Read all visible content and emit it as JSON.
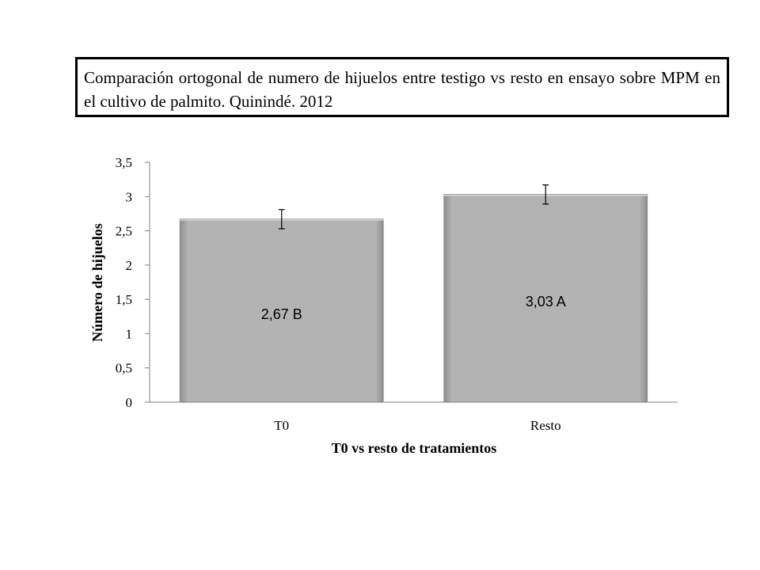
{
  "title": "Comparación ortogonal de numero de hijuelos entre testigo vs resto en ensayo sobre MPM en el cultivo de palmito. Quinindé. 2012",
  "chart_data": {
    "type": "bar",
    "categories": [
      "T0",
      "Resto"
    ],
    "values": [
      2.67,
      3.03
    ],
    "error_bars": [
      0.14,
      0.14
    ],
    "data_labels": [
      "2,67 B",
      "3,03 A"
    ],
    "xlabel": "T0 vs resto de tratamientos",
    "ylabel": "Número de hijuelos",
    "ylim": [
      0,
      3.5
    ],
    "yticks": [
      0,
      0.5,
      1,
      1.5,
      2,
      2.5,
      3,
      3.5
    ],
    "ytick_labels": [
      "0",
      "0,5",
      "1",
      "1,5",
      "2",
      "2,5",
      "3",
      "3,5"
    ],
    "bar_color": "#b3b3b3",
    "grid": false,
    "legend": "none"
  }
}
